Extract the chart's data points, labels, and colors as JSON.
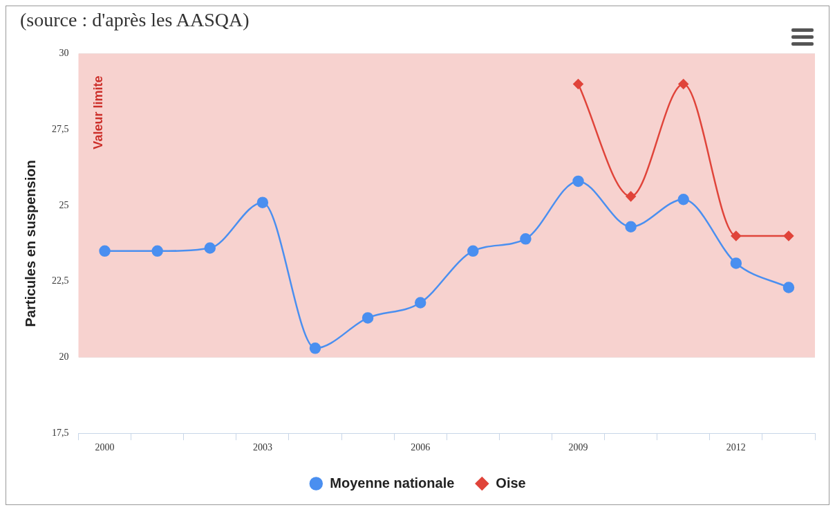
{
  "chart_data": {
    "type": "line",
    "title": "(source : d'après les AASQA)",
    "ylabel": "Particules en suspension",
    "categories": [
      "2000",
      null,
      null,
      "2003",
      null,
      null,
      "2006",
      null,
      null,
      "2009",
      null,
      null,
      "2012",
      null
    ],
    "series": [
      {
        "name": "Moyenne nationale",
        "color": "#4a8ff0",
        "marker": "circle",
        "values": [
          23.5,
          23.5,
          23.6,
          25.1,
          20.3,
          21.3,
          21.8,
          23.5,
          23.9,
          25.8,
          24.3,
          25.2,
          23.1,
          22.3
        ]
      },
      {
        "name": "Oise",
        "color": "#e0443a",
        "marker": "diamond",
        "values": [
          null,
          null,
          null,
          null,
          null,
          null,
          null,
          null,
          null,
          29.0,
          25.3,
          29.0,
          24.0,
          24.0
        ]
      }
    ],
    "ylim": [
      17.5,
      30
    ],
    "yticks": [
      {
        "value": 17.5,
        "label": "17,5"
      },
      20,
      {
        "value": 22.5,
        "label": "22,5"
      },
      25,
      {
        "value": 27.5,
        "label": "27,5"
      },
      30
    ],
    "bands": [
      {
        "axis": "y",
        "from": 20,
        "to": 30,
        "label": "Valeur limite",
        "color": "#f7d2cf"
      }
    ],
    "grid": "y",
    "legend": "bottom"
  }
}
